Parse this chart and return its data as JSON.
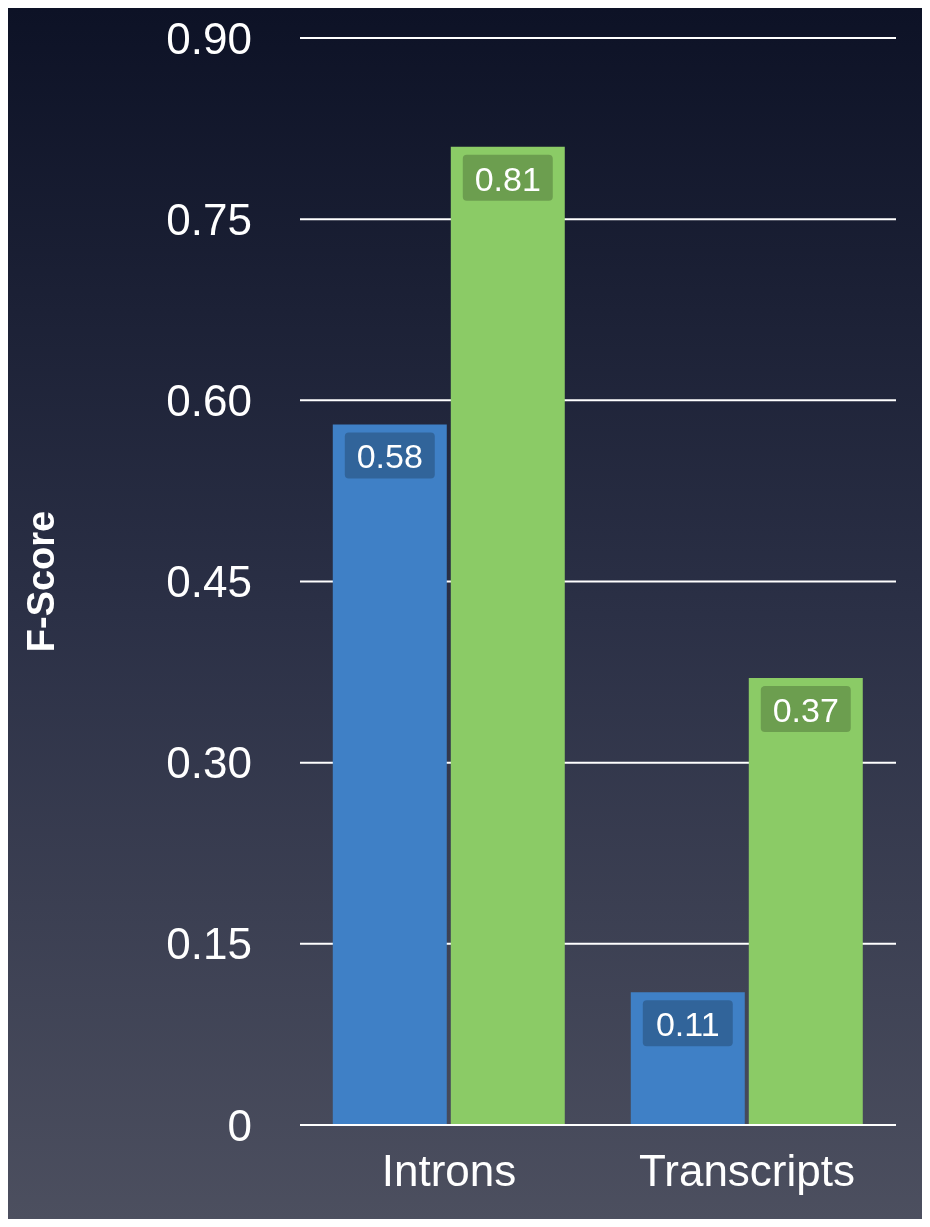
{
  "chart_data": {
    "type": "bar",
    "ylabel": "F-Score",
    "categories": [
      "Introns",
      "Transcripts"
    ],
    "series": [
      {
        "color": "#3f80c6",
        "values": [
          0.58,
          0.11
        ]
      },
      {
        "color": "#8bcb66",
        "values": [
          0.81,
          0.37
        ]
      }
    ],
    "ylim": [
      0,
      0.9
    ],
    "yticks": [
      0,
      0.15,
      {
        "value": 0.3,
        "label": "0.30"
      },
      0.45,
      {
        "value": 0.6,
        "label": "0.60"
      },
      0.75,
      {
        "value": 0.9,
        "label": "0.90"
      }
    ],
    "grid": "y",
    "data_labels": true
  }
}
